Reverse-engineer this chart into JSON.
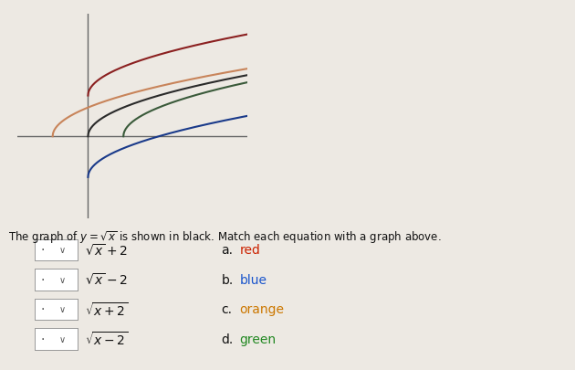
{
  "title_text": "The graph of $y = \\sqrt{x}$ is shown in black. Match each equation with a graph above.",
  "equations": [
    {
      "label": "$\\sqrt{x}+2$",
      "answer_letter": "a.",
      "answer_word": "red"
    },
    {
      "label": "$\\sqrt{x}-2$",
      "answer_letter": "b.",
      "answer_word": "blue"
    },
    {
      "label": "$\\sqrt{x+2}$",
      "answer_letter": "c.",
      "answer_word": "orange"
    },
    {
      "label": "$\\sqrt{x-2}$",
      "answer_letter": "d.",
      "answer_word": "green"
    }
  ],
  "curves": [
    {
      "name": "black",
      "color": "#2a2a2a",
      "lw": 1.5
    },
    {
      "name": "red",
      "color": "#8B2020",
      "lw": 1.5
    },
    {
      "name": "orange",
      "color": "#C8845A",
      "lw": 1.5
    },
    {
      "name": "blue",
      "color": "#1a3a8a",
      "lw": 1.5
    },
    {
      "name": "green",
      "color": "#3a5a3a",
      "lw": 1.5
    }
  ],
  "answer_colors": {
    "red": "#cc2200",
    "blue": "#1a55cc",
    "orange": "#cc7700",
    "green": "#228822"
  },
  "xlim": [
    -4,
    9
  ],
  "ylim": [
    -4,
    6
  ],
  "axis_color": "#666666",
  "background_color": "#ede9e3",
  "figsize": [
    6.3,
    4.06
  ],
  "dpi": 100
}
